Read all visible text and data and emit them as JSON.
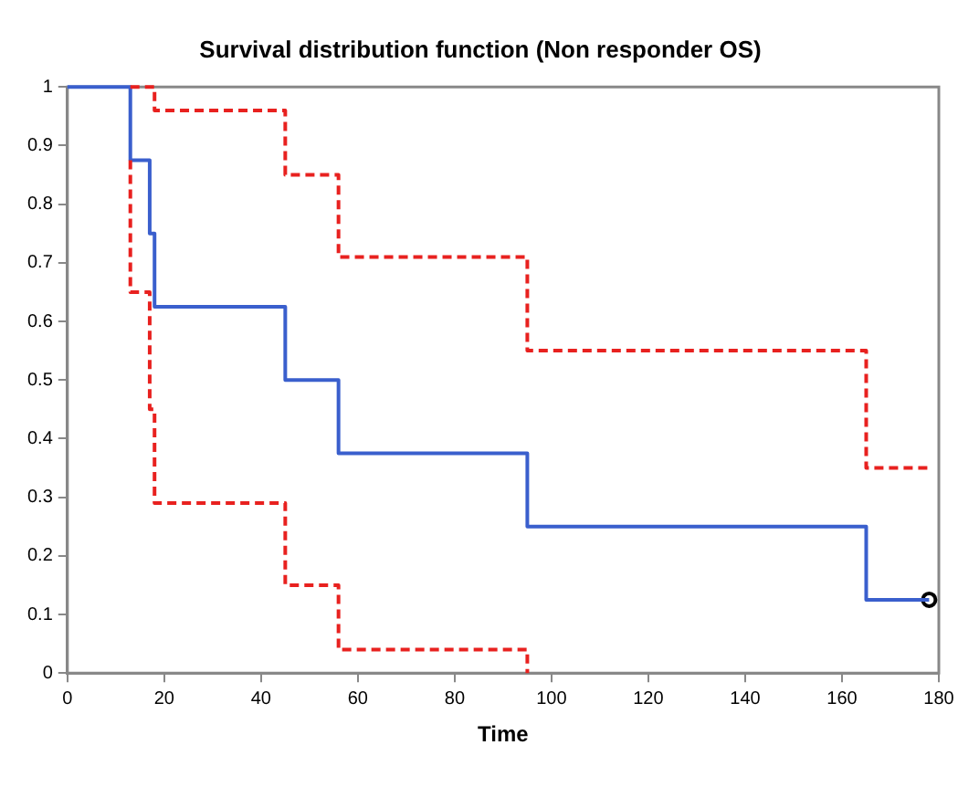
{
  "chart_data": {
    "type": "step",
    "title": "Survival distribution function (Non responder OS)",
    "xlabel": "Time",
    "xlim": [
      0,
      180
    ],
    "xticks": [
      0,
      20,
      40,
      60,
      80,
      100,
      120,
      140,
      160,
      180
    ],
    "ylim": [
      0,
      1
    ],
    "yticks": [
      0,
      0.1,
      0.2,
      0.3,
      0.4,
      0.5,
      0.6,
      0.7,
      0.8,
      0.9,
      1
    ],
    "grid": false,
    "legend": false,
    "series": [
      {
        "color": "#e8211f",
        "line_style": "dashed",
        "marker": "none",
        "x": [
          13,
          18,
          45,
          56,
          95,
          165,
          178
        ],
        "values": [
          1,
          0.96,
          0.85,
          0.71,
          0.55,
          0.35,
          0.35
        ]
      },
      {
        "color": "#e8211f",
        "line_style": "dashed",
        "marker": "none",
        "x": [
          13,
          13,
          17,
          18,
          45,
          56,
          95
        ],
        "values": [
          0.875,
          0.65,
          0.45,
          0.29,
          0.15,
          0.04,
          0
        ]
      },
      {
        "color": "#3a5fcd",
        "line_style": "solid",
        "marker": "none",
        "x": [
          0,
          13,
          17,
          18,
          45,
          56,
          95,
          165,
          178
        ],
        "values": [
          1,
          0.875,
          0.75,
          0.625,
          0.5,
          0.375,
          0.25,
          0.125,
          0.125
        ]
      },
      {
        "type": "scatter",
        "color": "#000000",
        "marker": "circle",
        "x": [
          178
        ],
        "values": [
          0.125
        ]
      }
    ]
  }
}
